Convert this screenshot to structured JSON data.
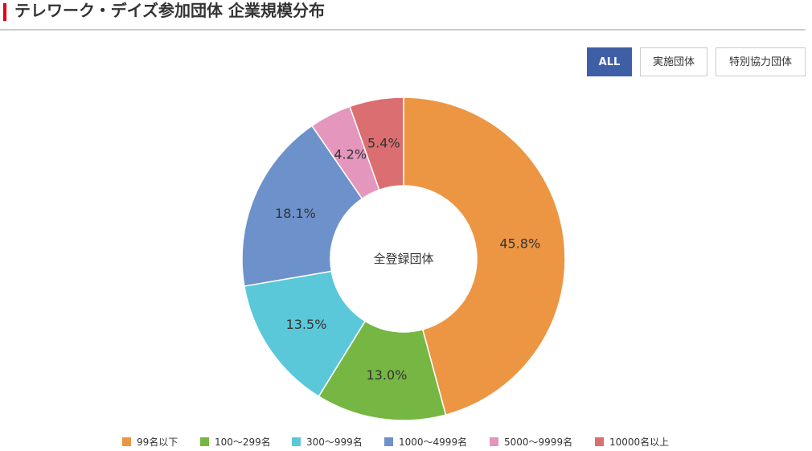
{
  "header": {
    "title": "テレワーク・デイズ参加団体 企業規模分布"
  },
  "filters": [
    {
      "label": "ALL",
      "active": true
    },
    {
      "label": "実施団体",
      "active": false
    },
    {
      "label": "特別協力団体",
      "active": false
    }
  ],
  "chart_data": {
    "type": "pie",
    "center_label": "全登録団体",
    "legend_position": "bottom",
    "categories": [
      "99名以下",
      "100〜299名",
      "300〜999名",
      "1000〜4999名",
      "5000〜9999名",
      "10000名以上"
    ],
    "values": [
      45.8,
      13.0,
      13.5,
      18.1,
      4.2,
      5.4
    ],
    "data_labels": [
      "45.8%",
      "13.0%",
      "13.5%",
      "18.1%",
      "4.2%",
      "5.4%"
    ],
    "colors": [
      "#ec9644",
      "#76b643",
      "#5bc8da",
      "#6d91cb",
      "#e596bc",
      "#db6e71"
    ]
  }
}
